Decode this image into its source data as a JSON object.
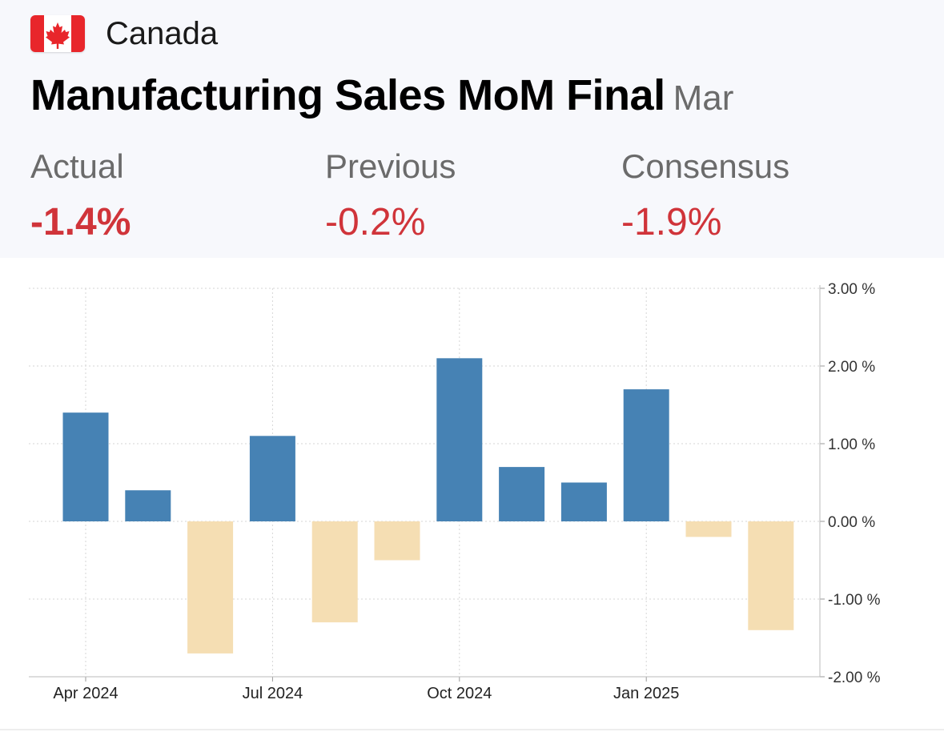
{
  "header": {
    "country": "Canada",
    "title": "Manufacturing Sales MoM Final",
    "period": "Mar"
  },
  "stats": {
    "actual": {
      "label": "Actual",
      "value": "-1.4%"
    },
    "previous": {
      "label": "Previous",
      "value": "-0.2%"
    },
    "consensus": {
      "label": "Consensus",
      "value": "-1.9%"
    }
  },
  "colors": {
    "positive": "#4682b4",
    "negative": "#f5deb3",
    "stat_value": "#d0343a"
  },
  "chart_data": {
    "type": "bar",
    "title": "",
    "xlabel": "",
    "ylabel": "",
    "ylim": [
      -2,
      3
    ],
    "categories": [
      "Apr 2024",
      "May 2024",
      "Jun 2024",
      "Jul 2024",
      "Aug 2024",
      "Sep 2024",
      "Oct 2024",
      "Nov 2024",
      "Dec 2024",
      "Jan 2025",
      "Feb 2025",
      "Mar 2025"
    ],
    "values": [
      1.4,
      0.4,
      -1.7,
      1.1,
      -1.3,
      -0.5,
      2.1,
      0.7,
      0.5,
      1.7,
      -0.2,
      -1.4
    ],
    "x_tick_labels": [
      {
        "label": "Apr 2024",
        "index": 0
      },
      {
        "label": "Jul 2024",
        "index": 3
      },
      {
        "label": "Oct 2024",
        "index": 6
      },
      {
        "label": "Jan 2025",
        "index": 9
      }
    ],
    "y_ticks": [
      {
        "value": 3,
        "label": "3.00 %"
      },
      {
        "value": 2,
        "label": "2.00 %"
      },
      {
        "value": 1,
        "label": "1.00 %"
      },
      {
        "value": 0,
        "label": "0.00 %"
      },
      {
        "value": -1,
        "label": "-1.00 %"
      },
      {
        "value": -2,
        "label": "-2.00 %"
      }
    ],
    "grid": true,
    "legend": "none"
  }
}
